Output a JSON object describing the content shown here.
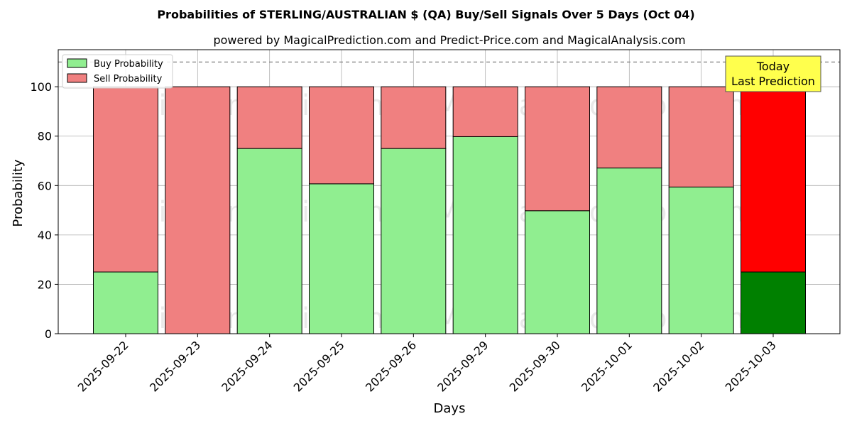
{
  "chart_data": {
    "type": "bar",
    "stacked": true,
    "title": "Probabilities of STERLING/AUSTRALIAN $ (QA) Buy/Sell Signals Over 5 Days (Oct 04)",
    "subtitle": "powered by MagicalPrediction.com and Predict-Price.com and MagicalAnalysis.com",
    "xlabel": "Days",
    "ylabel": "Probability",
    "ylim": [
      0,
      115
    ],
    "yticks": [
      0,
      20,
      40,
      60,
      80,
      100
    ],
    "reference_line": 110,
    "grid": true,
    "legend_position": "top-left",
    "categories": [
      "2025-09-22",
      "2025-09-23",
      "2025-09-24",
      "2025-09-25",
      "2025-09-26",
      "2025-09-29",
      "2025-09-30",
      "2025-10-01",
      "2025-10-02",
      "2025-10-03"
    ],
    "series": [
      {
        "name": "Buy Probability",
        "values": [
          25,
          0,
          75,
          60.7,
          75,
          79.8,
          49.8,
          67.1,
          59.4,
          25
        ],
        "color": "#90ee90",
        "highlight_color": "#008000"
      },
      {
        "name": "Sell Probability",
        "values": [
          75,
          100,
          25,
          39.3,
          25,
          20.2,
          50.2,
          32.9,
          40.6,
          75
        ],
        "color": "#f08080",
        "highlight_color": "#ff0000"
      }
    ],
    "highlight_index": 9,
    "annotation": {
      "lines": [
        "Today",
        "Last Prediction"
      ],
      "background": "#ffff4d"
    },
    "watermarks": [
      "MagicalAnalysis.com",
      "MagicalPrediction.com"
    ]
  }
}
